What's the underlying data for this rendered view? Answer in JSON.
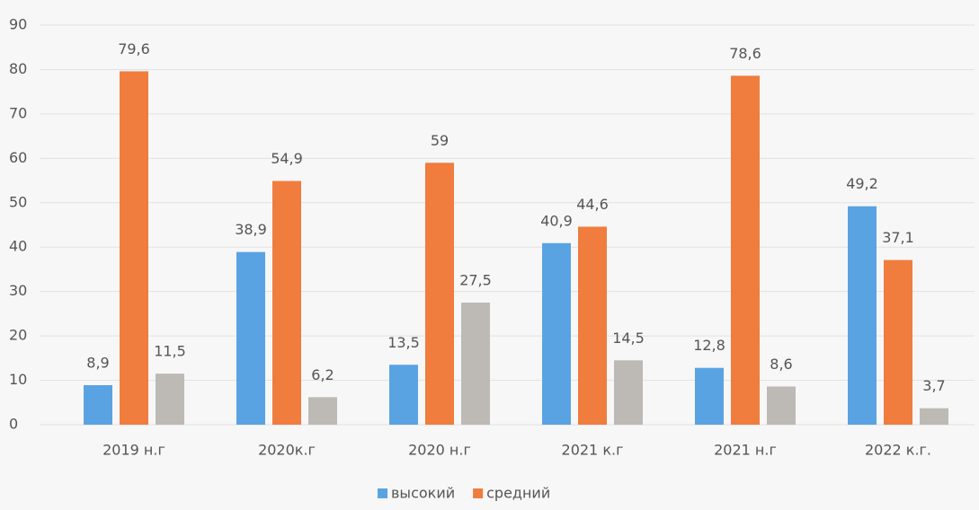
{
  "chart_data": {
    "type": "bar",
    "categories": [
      "2019 н.г",
      "2020к.г",
      "2020 н.г",
      "2021 к.г",
      "2021 н.г",
      "2022 к.г."
    ],
    "series": [
      {
        "name": "высокий",
        "color": "#5aa3e3",
        "values": [
          8.9,
          38.9,
          13.5,
          40.9,
          12.8,
          49.2
        ],
        "value_labels": [
          "8,9",
          "38,9",
          "13,5",
          "40,9",
          "12,8",
          "49,2"
        ]
      },
      {
        "name": "средний",
        "color": "#f07c3e",
        "values": [
          79.6,
          54.9,
          59,
          44.6,
          78.6,
          37.1
        ],
        "value_labels": [
          "79,6",
          "54,9",
          "59",
          "44,6",
          "78,6",
          "37,1"
        ]
      },
      {
        "color": "#bdb9b5",
        "values": [
          11.5,
          6.2,
          27.5,
          14.5,
          8.6,
          3.7
        ],
        "value_labels": [
          "11,5",
          "6,2",
          "27,5",
          "14,5",
          "8,6",
          "3,7"
        ]
      }
    ],
    "ylim": [
      0,
      90
    ],
    "yticks": [
      0,
      10,
      20,
      30,
      40,
      50,
      60,
      70,
      80,
      90
    ],
    "grid": true
  }
}
